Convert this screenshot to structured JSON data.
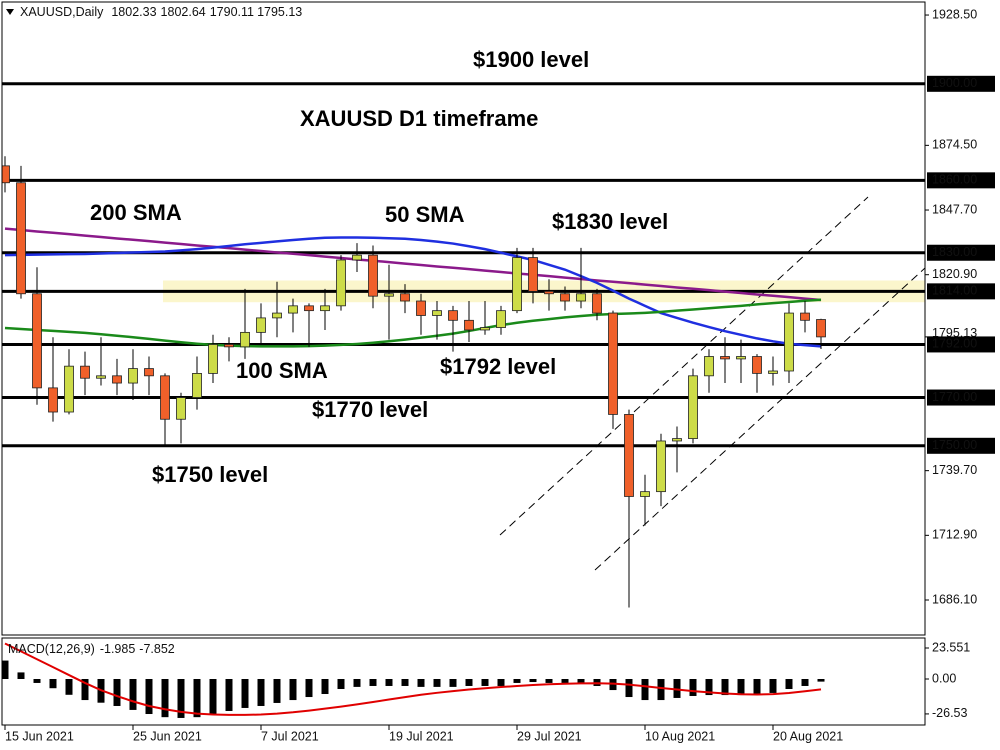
{
  "chart_data": [
    {
      "type": "candlestick",
      "symbol": "XAUUSD,Daily",
      "categories": [
        "15 Jun 2021",
        null,
        null,
        null,
        null,
        null,
        null,
        null,
        "25 Jun 2021",
        null,
        null,
        null,
        null,
        null,
        null,
        null,
        "7 Jul 2021",
        null,
        null,
        null,
        null,
        null,
        null,
        null,
        "19 Jul 2021",
        null,
        null,
        null,
        null,
        null,
        null,
        null,
        "29 Jul 2021",
        null,
        null,
        null,
        null,
        null,
        null,
        null,
        "10 Aug 2021",
        null,
        null,
        null,
        null,
        null,
        null,
        null,
        "20 Aug 2021",
        null,
        null,
        null
      ],
      "open": [
        1866,
        1859,
        1813,
        1774,
        1764,
        1783,
        1778,
        1779,
        1776,
        1782,
        1779,
        1761,
        1770,
        1780,
        1792,
        1791,
        1797,
        1803,
        1805,
        1808,
        1806,
        1808,
        1827,
        1829,
        1812,
        1813,
        1810,
        1804,
        1806,
        1802,
        1798,
        1799,
        1806,
        1828,
        1814,
        1813,
        1810,
        1813,
        1805,
        1763,
        1729,
        1731,
        1752,
        1753,
        1779,
        1787,
        1786,
        1787,
        1780,
        1781,
        1805,
        1802.33
      ],
      "high": [
        1870,
        1866,
        1824,
        1795,
        1790,
        1789,
        1795,
        1786,
        1790,
        1787,
        1780,
        1772,
        1787,
        1796,
        1795,
        1815,
        1809,
        1818,
        1811,
        1809,
        1815,
        1829,
        1834,
        1833,
        1825,
        1817,
        1813,
        1810,
        1808,
        1810,
        1810,
        1808,
        1832,
        1832,
        1819,
        1816,
        1832,
        1815,
        1806,
        1765,
        1738,
        1755,
        1758,
        1782,
        1790,
        1795,
        1794,
        1788,
        1787,
        1809,
        1810,
        1802.64
      ],
      "low": [
        1855,
        1811,
        1767,
        1760,
        1763,
        1771,
        1775,
        1771,
        1769,
        1771,
        1750,
        1751,
        1765,
        1776,
        1785,
        1786,
        1792,
        1795,
        1797,
        1791,
        1798,
        1806,
        1822,
        1807,
        1794,
        1805,
        1796,
        1794,
        1789,
        1793,
        1796,
        1796,
        1805,
        1809,
        1806,
        1806,
        1807,
        1802,
        1757,
        1683,
        1717,
        1725,
        1739,
        1751,
        1772,
        1776,
        1776,
        1772,
        1775,
        1776,
        1797,
        1790.11
      ],
      "close": [
        1859,
        1813,
        1774,
        1764,
        1783,
        1778,
        1779,
        1776,
        1782,
        1779,
        1761,
        1770,
        1780,
        1792,
        1791,
        1797,
        1803,
        1805,
        1808,
        1806,
        1808,
        1827,
        1829,
        1812,
        1813,
        1810,
        1804,
        1806,
        1802,
        1798,
        1799,
        1806,
        1828,
        1814,
        1813,
        1810,
        1813,
        1805,
        1763,
        1729,
        1731,
        1752,
        1753,
        1779,
        1787,
        1786,
        1787,
        1780,
        1781,
        1805,
        1802,
        1795.13
      ],
      "up_color": "#cddc48",
      "down_color": "#f0602a",
      "ylim": [
        1671.6,
        1933.9
      ],
      "yticks": [
        {
          "value": 1928.5,
          "label": "1928.50"
        },
        {
          "value": 1874.5,
          "label": "1874.50"
        },
        {
          "value": 1847.7,
          "label": "1847.70"
        },
        {
          "value": 1820.9,
          "label": "1820.90"
        },
        {
          "value": 1739.7,
          "label": "1739.70"
        },
        {
          "value": 1712.9,
          "label": "1712.90"
        },
        {
          "value": 1686.1,
          "label": "1686.10"
        }
      ],
      "last_price": 1795.13,
      "levels": [
        {
          "value": 1900,
          "label": "1900.00"
        },
        {
          "value": 1860,
          "label": "1860.00"
        },
        {
          "value": 1830,
          "label": "1830.00"
        },
        {
          "value": 1814,
          "label": "1814.00"
        },
        {
          "value": 1792,
          "label": "1792.00"
        },
        {
          "value": 1770,
          "label": "1770.00"
        },
        {
          "value": 1750,
          "label": "1750.00"
        }
      ],
      "zone": [
        1809.5,
        1818.5
      ],
      "zone_color": "#fbf6cc",
      "series": [
        {
          "name": "200 SMA",
          "color": "#8b1a8b",
          "values": [
            1840.0,
            1839.4,
            1838.8,
            1838.3,
            1837.7,
            1837.1,
            1836.5,
            1835.9,
            1835.4,
            1834.8,
            1834.2,
            1833.6,
            1833.0,
            1832.5,
            1831.9,
            1831.3,
            1830.7,
            1830.1,
            1829.6,
            1829.0,
            1828.4,
            1827.8,
            1827.2,
            1826.7,
            1826.1,
            1825.5,
            1824.9,
            1824.3,
            1823.8,
            1823.2,
            1822.6,
            1822.0,
            1821.4,
            1820.9,
            1820.3,
            1819.7,
            1819.1,
            1818.5,
            1818.0,
            1817.4,
            1816.8,
            1816.2,
            1815.6,
            1815.1,
            1814.5,
            1813.9,
            1813.3,
            1812.7,
            1812.2,
            1811.6,
            1811.0,
            1810.4
          ]
        },
        {
          "name": "50 SMA",
          "color": "#1f2fe0",
          "values": [
            1829.0,
            1829.1,
            1829.2,
            1829.3,
            1829.4,
            1829.5,
            1829.7,
            1829.9,
            1830.1,
            1830.3,
            1830.5,
            1831.0,
            1831.5,
            1832.1,
            1832.8,
            1833.5,
            1834.1,
            1834.7,
            1835.3,
            1835.8,
            1836.2,
            1836.3,
            1836.3,
            1836.2,
            1836.0,
            1835.8,
            1835.3,
            1834.6,
            1833.8,
            1832.7,
            1831.5,
            1830.0,
            1828.5,
            1827.0,
            1825.0,
            1823.0,
            1820.3,
            1817.5,
            1814.3,
            1811.0,
            1808.0,
            1805.0,
            1803.0,
            1801.0,
            1799.2,
            1797.5,
            1796.0,
            1794.5,
            1793.3,
            1792.3,
            1791.7,
            1791.2
          ]
        },
        {
          "name": "100 SMA",
          "color": "#1a8a1a",
          "values": [
            1798.8,
            1798.4,
            1798.0,
            1797.6,
            1797.2,
            1796.8,
            1796.2,
            1795.6,
            1795.0,
            1794.3,
            1793.6,
            1792.9,
            1792.3,
            1791.8,
            1791.5,
            1791.3,
            1791.2,
            1791.2,
            1791.2,
            1791.3,
            1791.5,
            1791.8,
            1792.2,
            1792.7,
            1793.3,
            1794.0,
            1794.8,
            1795.6,
            1796.5,
            1797.6,
            1798.8,
            1800.0,
            1801.0,
            1801.8,
            1802.5,
            1803.2,
            1803.8,
            1804.3,
            1804.6,
            1804.8,
            1805.1,
            1805.5,
            1806.0,
            1806.5,
            1807.0,
            1807.5,
            1808.0,
            1808.6,
            1809.1,
            1809.6,
            1810.1,
            1810.5
          ]
        }
      ],
      "annotations": [
        "$1900 level",
        "XAUUSD D1 timeframe",
        "$1830 level",
        "$1792 level",
        "$1770 level",
        "$1750 level"
      ]
    },
    {
      "type": "bar",
      "title": "MACD(12,26,9)",
      "ylim": [
        -34.95,
        31.15
      ],
      "yticks": [
        23.551,
        {
          "value": 0,
          "label": "0.00"
        },
        -26.53
      ],
      "series": [
        {
          "color": "#000000",
          "values": [
            14,
            5,
            -3,
            -7,
            -12,
            -16,
            -18,
            -20.5,
            -23.5,
            -26.6,
            -29,
            -29.6,
            -29,
            -26.6,
            -24.3,
            -22,
            -20.5,
            -18.2,
            -16,
            -13.7,
            -11.4,
            -7.6,
            -6,
            -5.3,
            -5.3,
            -5.3,
            -6,
            -6,
            -6,
            -5.3,
            -5.3,
            -5.3,
            -3,
            -2.3,
            -3,
            -3,
            -3.8,
            -5.3,
            -8.4,
            -13.7,
            -16,
            -16,
            -14.4,
            -12.9,
            -12.2,
            -12.2,
            -12.2,
            -12.2,
            -10.6,
            -7.6,
            -5.3,
            -1.985
          ]
        },
        {
          "color": "#e00000",
          "values": [
            27,
            21,
            15,
            9,
            3,
            -3,
            -8.5,
            -13,
            -17,
            -20.5,
            -23,
            -25,
            -26.3,
            -27,
            -27.3,
            -27.3,
            -27,
            -26.3,
            -25.3,
            -24,
            -22.5,
            -21,
            -19.3,
            -17.5,
            -15.6,
            -13.8,
            -12,
            -10.5,
            -9.2,
            -8,
            -7,
            -6.1,
            -5.3,
            -4.6,
            -4,
            -3.6,
            -3.3,
            -3.2,
            -3.5,
            -4.3,
            -5.5,
            -6.8,
            -8,
            -9.2,
            -10.2,
            -11,
            -11.6,
            -11.8,
            -11.5,
            -10.6,
            -9.3,
            -7.852
          ]
        }
      ]
    }
  ]
}
